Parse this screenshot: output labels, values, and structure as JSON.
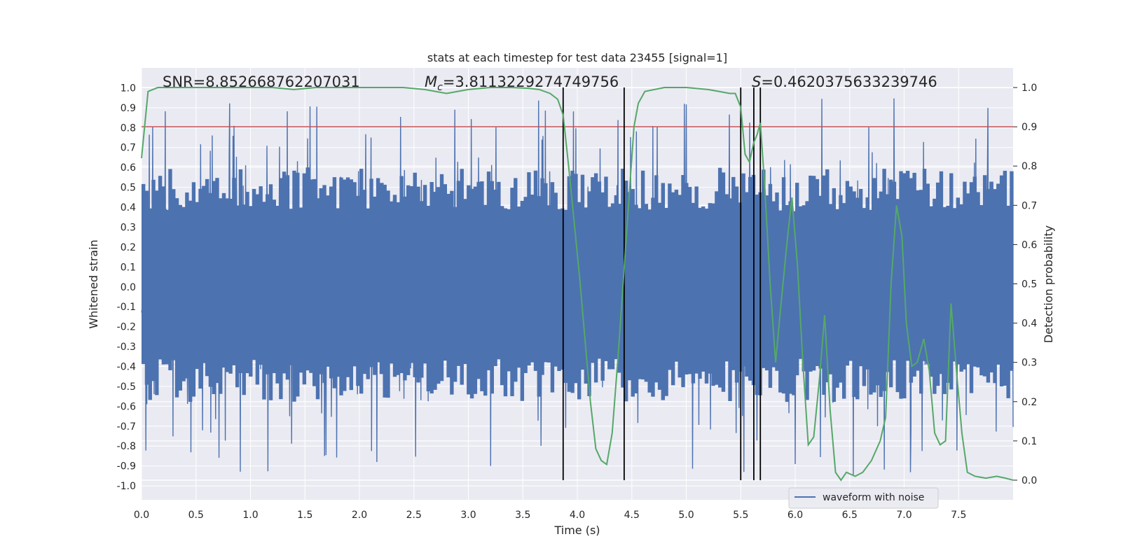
{
  "chart_data": {
    "type": "line",
    "title": "stats at each timestep for test data 23455 [signal=1]",
    "xlabel": "Time (s)",
    "ylabel": "Whitened strain",
    "y2label": "Detection probability",
    "xlim": [
      0.0,
      8.0
    ],
    "ylim": [
      -1.07,
      1.1
    ],
    "y2lim": [
      -0.05,
      1.05
    ],
    "xticks": [
      "0.0",
      "0.5",
      "1.0",
      "1.5",
      "2.0",
      "2.5",
      "3.0",
      "3.5",
      "4.0",
      "4.5",
      "5.0",
      "5.5",
      "6.0",
      "6.5",
      "7.0",
      "7.5"
    ],
    "yticks": [
      "-1.0",
      "-0.9",
      "-0.8",
      "-0.7",
      "-0.6",
      "-0.5",
      "-0.4",
      "-0.3",
      "-0.2",
      "-0.1",
      "0.0",
      "0.1",
      "0.2",
      "0.3",
      "0.4",
      "0.5",
      "0.6",
      "0.7",
      "0.8",
      "0.9",
      "1.0"
    ],
    "y2ticks": [
      "0.0",
      "0.1",
      "0.2",
      "0.3",
      "0.4",
      "0.5",
      "0.6",
      "0.7",
      "0.8",
      "0.9",
      "1.0"
    ],
    "grid": true,
    "annotations": {
      "snr": "SNR=8.852668762207031",
      "mc_symbol": "M",
      "mc_sub": "c",
      "mc_value": "=3.8113229274749756",
      "s_symbol": "S",
      "s_value": "=0.4620375633239746"
    },
    "threshold": {
      "value": 0.9,
      "axis": "right",
      "color": "#c44e52"
    },
    "vertical_markers": [
      3.87,
      4.43,
      5.5,
      5.62,
      5.68
    ],
    "series": [
      {
        "name": "waveform with noise",
        "axis": "left",
        "color": "#4c72b0",
        "style": "noise",
        "amplitude": 0.45,
        "peaks": 1.0,
        "samples": 1800
      },
      {
        "name": "",
        "axis": "right",
        "color": "#55a868",
        "x": [
          0.0,
          0.06,
          0.15,
          0.3,
          0.5,
          0.8,
          1.0,
          1.2,
          1.4,
          1.6,
          2.0,
          2.4,
          2.6,
          2.8,
          3.0,
          3.2,
          3.4,
          3.55,
          3.65,
          3.75,
          3.82,
          3.87,
          3.92,
          3.97,
          4.02,
          4.07,
          4.12,
          4.17,
          4.22,
          4.27,
          4.32,
          4.37,
          4.42,
          4.47,
          4.52,
          4.56,
          4.62,
          4.8,
          5.0,
          5.2,
          5.3,
          5.4,
          5.45,
          5.5,
          5.54,
          5.58,
          5.62,
          5.65,
          5.68,
          5.72,
          5.77,
          5.82,
          5.87,
          5.93,
          5.97,
          6.02,
          6.07,
          6.12,
          6.17,
          6.22,
          6.27,
          6.32,
          6.37,
          6.42,
          6.47,
          6.55,
          6.62,
          6.7,
          6.78,
          6.83,
          6.88,
          6.93,
          6.98,
          7.02,
          7.07,
          7.12,
          7.18,
          7.23,
          7.28,
          7.33,
          7.38,
          7.43,
          7.48,
          7.53,
          7.58,
          7.65,
          7.75,
          7.85,
          7.93,
          8.0
        ],
        "y": [
          0.82,
          0.99,
          1.0,
          1.0,
          1.0,
          1.0,
          1.0,
          1.0,
          0.995,
          1.0,
          1.0,
          1.0,
          0.995,
          0.985,
          0.995,
          1.0,
          1.0,
          0.998,
          0.995,
          0.985,
          0.97,
          0.93,
          0.8,
          0.66,
          0.52,
          0.36,
          0.2,
          0.08,
          0.05,
          0.04,
          0.12,
          0.3,
          0.5,
          0.7,
          0.9,
          0.96,
          0.99,
          1.0,
          1.0,
          0.995,
          0.99,
          0.985,
          0.985,
          0.95,
          0.83,
          0.81,
          0.86,
          0.88,
          0.91,
          0.75,
          0.5,
          0.3,
          0.45,
          0.62,
          0.72,
          0.55,
          0.3,
          0.09,
          0.11,
          0.25,
          0.42,
          0.18,
          0.02,
          0.0,
          0.02,
          0.01,
          0.02,
          0.05,
          0.1,
          0.16,
          0.5,
          0.7,
          0.62,
          0.4,
          0.29,
          0.3,
          0.36,
          0.28,
          0.12,
          0.09,
          0.1,
          0.45,
          0.28,
          0.12,
          0.02,
          0.01,
          0.005,
          0.01,
          0.005,
          0.0
        ]
      }
    ],
    "legend": {
      "position": "bottom-right",
      "entries": [
        "waveform with noise"
      ]
    }
  }
}
